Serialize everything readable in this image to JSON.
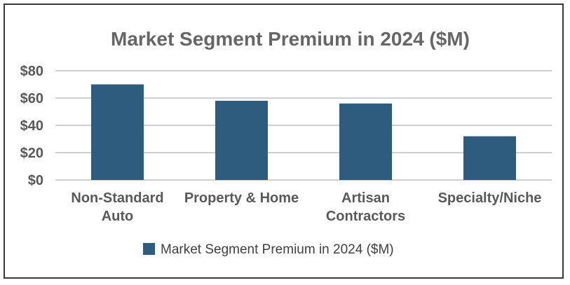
{
  "chart_data": {
    "type": "bar",
    "title": "Market Segment Premium in 2024 ($M)",
    "categories": [
      [
        "Non-Standard",
        "Auto"
      ],
      [
        "Property & Home"
      ],
      [
        "Artisan",
        "Contractors"
      ],
      [
        "Specialty/Niche"
      ]
    ],
    "series": [
      {
        "name": "Market Segment Premium in 2024 ($M)",
        "values": [
          70,
          58,
          56,
          32
        ],
        "color": "#2e5c7e"
      }
    ],
    "yticks": [
      "$0",
      "$20",
      "$40",
      "$60",
      "$80"
    ],
    "ytick_values": [
      0,
      20,
      40,
      60,
      80
    ],
    "ylim": [
      0,
      80
    ],
    "grid": true,
    "legend_position": "bottom"
  }
}
